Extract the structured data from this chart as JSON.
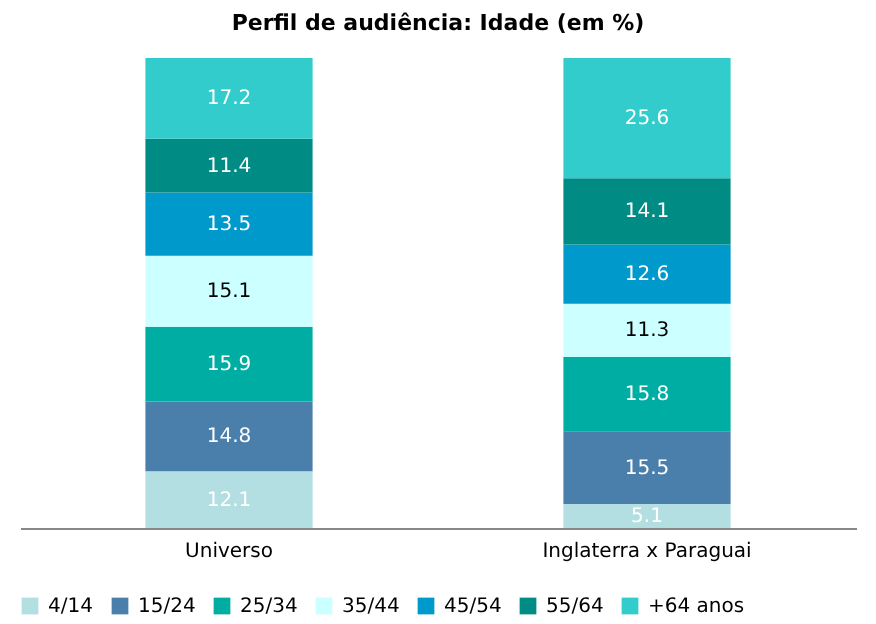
{
  "chart_data": {
    "type": "bar",
    "title": "Perfil de audiência: Idade (em %)",
    "categories": [
      "Universo",
      "Inglaterra x Paraguai"
    ],
    "stacked": true,
    "data_labels": true,
    "legend": "bottom",
    "tick_labels": "x",
    "series": [
      {
        "name": "4/14",
        "color": "#b3dfe3",
        "values": [
          12.1,
          5.1
        ]
      },
      {
        "name": "15/24",
        "color": "#4a7eab",
        "values": [
          14.8,
          15.5
        ]
      },
      {
        "name": "25/34",
        "color": "#00ada3",
        "values": [
          15.9,
          15.8
        ]
      },
      {
        "name": "35/44",
        "color": "#ccffff",
        "values": [
          15.1,
          11.3
        ]
      },
      {
        "name": "45/54",
        "color": "#0099cc",
        "values": [
          13.5,
          12.6
        ]
      },
      {
        "name": "55/64",
        "color": "#008c84",
        "values": [
          11.4,
          14.1
        ]
      },
      {
        "name": "+64 anos",
        "color": "#33cccc",
        "values": [
          17.2,
          25.6
        ]
      }
    ]
  }
}
